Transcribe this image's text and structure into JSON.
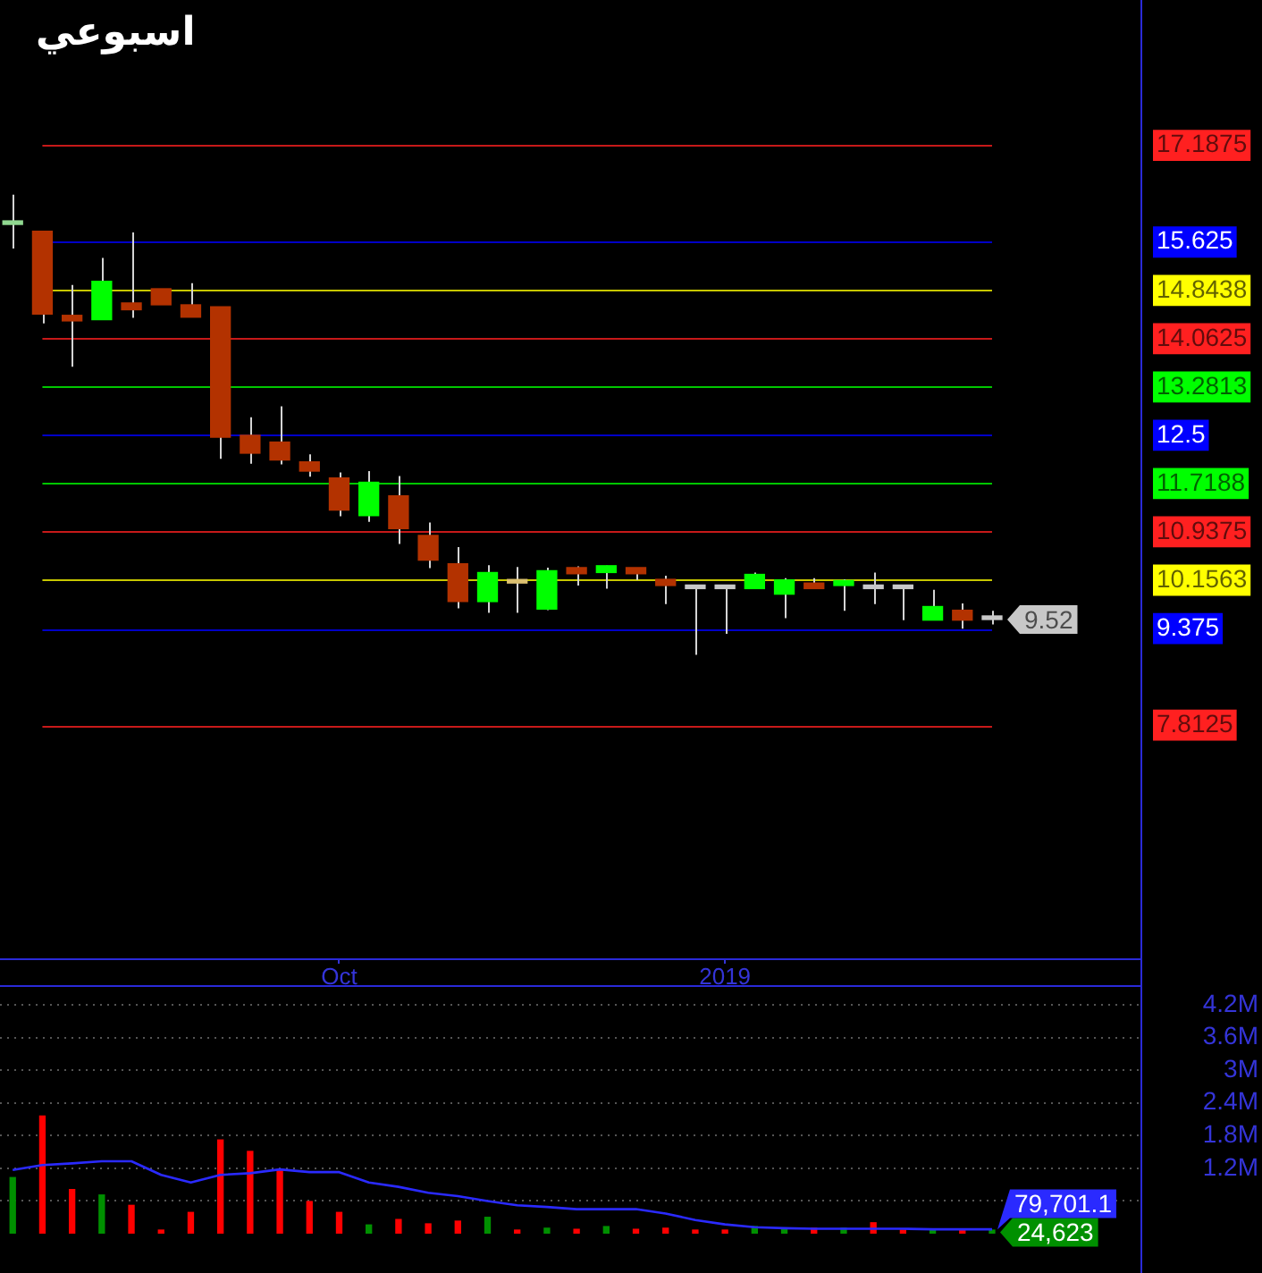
{
  "chart_data": [
    {
      "type": "candlestick",
      "title": "اسبوعي",
      "x": [
        "2018-07-19",
        "2018-07-26",
        "2018-08-02",
        "2018-08-09",
        "2018-08-16",
        "2018-08-23",
        "2018-08-30",
        "2018-09-06",
        "2018-09-13",
        "2018-09-20",
        "2018-09-27",
        "2018-10-04",
        "2018-10-11",
        "2018-10-18",
        "2018-10-25",
        "2018-11-01",
        "2018-11-08",
        "2018-11-15",
        "2018-11-22",
        "2018-11-29",
        "2018-12-06",
        "2018-12-13",
        "2018-12-20",
        "2018-12-27",
        "2019-01-03",
        "2019-01-10",
        "2019-01-17",
        "2019-01-24",
        "2019-01-31",
        "2019-02-07",
        "2019-02-14",
        "2019-02-21",
        "2019-02-28",
        "2019-03-07"
      ],
      "ohlc": [
        [
          15.91,
          16.39,
          15.52,
          15.94
        ],
        [
          15.8,
          15.8,
          14.31,
          14.46
        ],
        [
          14.44,
          14.93,
          13.61,
          14.35
        ],
        [
          14.37,
          15.37,
          14.37,
          14.99
        ],
        [
          14.64,
          15.78,
          14.4,
          14.53
        ],
        [
          14.87,
          14.87,
          14.61,
          14.61
        ],
        [
          14.61,
          14.96,
          14.41,
          14.41
        ],
        [
          14.58,
          14.58,
          12.12,
          12.47
        ],
        [
          12.5,
          12.79,
          12.04,
          12.21
        ],
        [
          12.39,
          12.97,
          12.03,
          12.1
        ],
        [
          12.07,
          12.19,
          11.83,
          11.92
        ],
        [
          11.81,
          11.9,
          11.19,
          11.29
        ],
        [
          11.2,
          11.92,
          11.1,
          11.74
        ],
        [
          11.52,
          11.84,
          10.74,
          10.99
        ],
        [
          10.88,
          11.09,
          10.35,
          10.48
        ],
        [
          10.42,
          10.69,
          9.7,
          9.81
        ],
        [
          9.81,
          10.4,
          9.63,
          10.28
        ],
        [
          10.11,
          10.37,
          9.63,
          10.12
        ],
        [
          9.69,
          10.36,
          9.67,
          10.31
        ],
        [
          10.36,
          10.38,
          10.07,
          10.26
        ],
        [
          10.28,
          10.39,
          10.02,
          10.39
        ],
        [
          10.36,
          10.36,
          10.16,
          10.26
        ],
        [
          10.17,
          10.23,
          9.77,
          10.07
        ],
        [
          10.02,
          10.02,
          8.95,
          10.02
        ],
        [
          10.02,
          10.02,
          9.29,
          10.02
        ],
        [
          10.02,
          10.28,
          10.02,
          10.25
        ],
        [
          9.93,
          10.19,
          9.54,
          10.16
        ],
        [
          10.11,
          10.19,
          10.02,
          10.02
        ],
        [
          10.07,
          10.17,
          9.66,
          10.15
        ],
        [
          10.02,
          10.28,
          9.77,
          10.02
        ],
        [
          10.02,
          10.07,
          9.51,
          10.02
        ],
        [
          9.51,
          10.0,
          9.51,
          9.73
        ],
        [
          9.67,
          9.78,
          9.37,
          9.51
        ],
        [
          9.52,
          9.66,
          9.44,
          9.52
        ]
      ],
      "colors": [
        "#90d890",
        "#b33200",
        "#b33200",
        "#00ff00",
        "#b33200",
        "#b33200",
        "#b33200",
        "#b33200",
        "#b33200",
        "#b33200",
        "#b33200",
        "#b33200",
        "#00ff00",
        "#b33200",
        "#b33200",
        "#b33200",
        "#00ff00",
        "#dcc070",
        "#00ff00",
        "#b33200",
        "#00ff00",
        "#b33200",
        "#b33200",
        "#c8c8c8",
        "#c8c8c8",
        "#00ff00",
        "#00ff00",
        "#b33200",
        "#00ff00",
        "#c8c8c8",
        "#c8c8c8",
        "#00ff00",
        "#b33200",
        "#c8c8c8"
      ],
      "xlim": [
        "2018-07-16",
        "2019-04-11"
      ],
      "xticks": [
        {
          "value": "2018-10-04",
          "label": "Oct"
        },
        {
          "value": "2019-01-03",
          "label": "2019"
        }
      ],
      "ylim": [
        4.04,
        19.54
      ],
      "yticks": [
        7.8125,
        9.375,
        10.1563,
        10.9375,
        11.7188,
        12.5,
        13.2813,
        14.0625,
        14.8438,
        15.625,
        17.1875
      ],
      "ref_lines": [
        {
          "axis": "y",
          "value": 17.1875,
          "color": "#ff2020"
        },
        {
          "axis": "y",
          "value": 15.625,
          "color": "#0000ff"
        },
        {
          "axis": "y",
          "value": 14.8438,
          "color": "#ffff00"
        },
        {
          "axis": "y",
          "value": 14.0625,
          "color": "#ff2020"
        },
        {
          "axis": "y",
          "value": 13.2813,
          "color": "#00ff00"
        },
        {
          "axis": "y",
          "value": 12.5,
          "color": "#0000ff"
        },
        {
          "axis": "y",
          "value": 11.7188,
          "color": "#00ff00"
        },
        {
          "axis": "y",
          "value": 10.9375,
          "color": "#ff2020"
        },
        {
          "axis": "y",
          "value": 10.1563,
          "color": "#ffff00"
        },
        {
          "axis": "y",
          "value": 9.375,
          "color": "#0000ff"
        },
        {
          "axis": "y",
          "value": 7.8125,
          "color": "#ff2020"
        }
      ],
      "annotations": [
        {
          "text": "9.52",
          "x": "2019-03-07",
          "y": 9.52
        }
      ]
    },
    {
      "type": "bar",
      "x": [
        "2018-07-19",
        "2018-07-26",
        "2018-08-02",
        "2018-08-09",
        "2018-08-16",
        "2018-08-23",
        "2018-08-30",
        "2018-09-06",
        "2018-09-13",
        "2018-09-20",
        "2018-09-27",
        "2018-10-04",
        "2018-10-11",
        "2018-10-18",
        "2018-10-25",
        "2018-11-01",
        "2018-11-08",
        "2018-11-15",
        "2018-11-22",
        "2018-11-29",
        "2018-12-06",
        "2018-12-13",
        "2018-12-20",
        "2018-12-27",
        "2019-01-03",
        "2019-01-10",
        "2019-01-17",
        "2019-01-24",
        "2019-01-31",
        "2019-02-07",
        "2019-02-14",
        "2019-02-21",
        "2019-02-28",
        "2019-03-07"
      ],
      "xlim": [
        "2018-07-16",
        "2019-04-11"
      ],
      "series": [
        {
          "type": "bar",
          "colors": [
            "#009000",
            "#ff0000",
            "#ff0000",
            "#009000",
            "#ff0000",
            "#ff0000",
            "#ff0000",
            "#ff0000",
            "#ff0000",
            "#ff0000",
            "#ff0000",
            "#ff0000",
            "#009000",
            "#ff0000",
            "#ff0000",
            "#ff0000",
            "#009000",
            "#ff0000",
            "#009000",
            "#ff0000",
            "#009000",
            "#ff0000",
            "#ff0000",
            "#ff0000",
            "#ff0000",
            "#009000",
            "#009000",
            "#ff0000",
            "#009000",
            "#ff0000",
            "#ff0000",
            "#009000",
            "#ff0000",
            "#009000"
          ],
          "values": [
            1030000,
            2160000,
            810000,
            710000,
            520000,
            40000,
            390000,
            1720000,
            1510000,
            1180000,
            590000,
            390000,
            160000,
            260000,
            180000,
            230000,
            300000,
            30000,
            100000,
            80000,
            130000,
            80000,
            100000,
            60000,
            40000,
            130000,
            100000,
            100000,
            100000,
            200000,
            60000,
            80000,
            60000,
            24623
          ]
        },
        {
          "type": "line",
          "color": "#2a2aff",
          "values": [
            1170000,
            1260000,
            1290000,
            1330000,
            1330000,
            1080000,
            940000,
            1080000,
            1110000,
            1180000,
            1130000,
            1130000,
            940000,
            860000,
            750000,
            690000,
            600000,
            520000,
            490000,
            450000,
            450000,
            450000,
            370000,
            250000,
            170000,
            120000,
            100000,
            90000,
            90000,
            90000,
            90000,
            80000,
            80000,
            79701.1
          ]
        }
      ],
      "ylim": [
        0,
        4530000
      ],
      "yticks": [
        {
          "value": 600000,
          "label": null
        },
        {
          "value": 1200000,
          "label": "1.2M"
        },
        {
          "value": 1800000,
          "label": "1.8M"
        },
        {
          "value": 2400000,
          "label": "2.4M"
        },
        {
          "value": 3000000,
          "label": "3M"
        },
        {
          "value": 3600000,
          "label": "3.6M"
        },
        {
          "value": 4200000,
          "label": "4.2M"
        }
      ],
      "tick_labels": "y",
      "grid": "y",
      "annotations": [
        {
          "text": "79,701.1",
          "x": "2019-03-07",
          "y": 79701.1
        },
        {
          "text": "24,623",
          "x": "2019-03-07",
          "y": 24623
        }
      ]
    }
  ]
}
